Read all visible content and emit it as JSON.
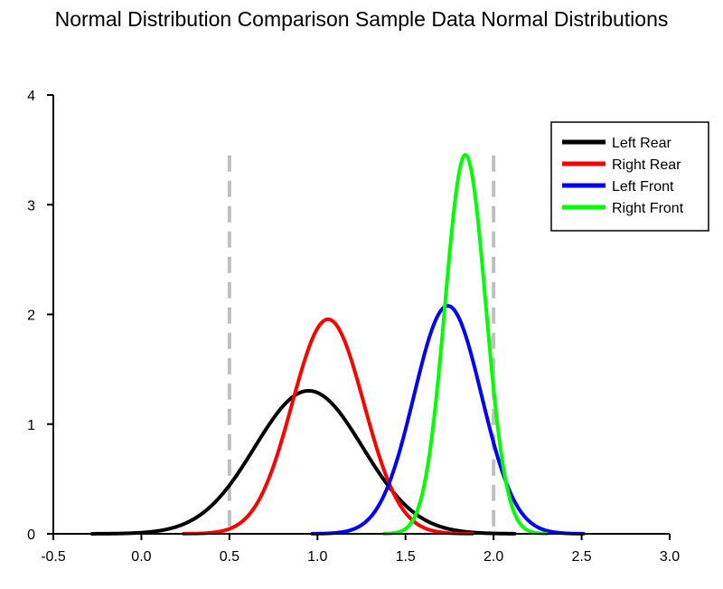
{
  "chart_data": {
    "type": "line",
    "title": "Normal Distribution Comparison Sample Data Normal Distributions",
    "xlabel": "",
    "ylabel": "",
    "xlim": [
      -0.5,
      3.0
    ],
    "ylim": [
      0,
      4
    ],
    "x_ticks": [
      -0.5,
      0.0,
      0.5,
      1.0,
      1.5,
      2.0,
      2.5,
      3.0
    ],
    "x_tick_labels": [
      "-0.5",
      "0.0",
      "0.5",
      "1.0",
      "1.5",
      "2.0",
      "2.5",
      "3.0"
    ],
    "y_ticks": [
      0,
      1,
      2,
      3,
      4
    ],
    "y_tick_labels": [
      "0",
      "1",
      "2",
      "3",
      "4"
    ],
    "grid": false,
    "legend_position": "top-right",
    "series": [
      {
        "name": "Left Rear",
        "color": "#000000",
        "distribution": {
          "mean": 0.95,
          "sd": 0.306
        },
        "x_range": [
          -0.28,
          2.12
        ]
      },
      {
        "name": "Right Rear",
        "color": "#ff0000",
        "distribution": {
          "mean": 1.06,
          "sd": 0.204
        },
        "x_range": [
          0.24,
          1.88
        ]
      },
      {
        "name": "Left Front",
        "color": "#0000ff",
        "distribution": {
          "mean": 1.74,
          "sd": 0.192
        },
        "x_range": [
          0.97,
          2.51
        ]
      },
      {
        "name": "Right Front",
        "color": "#00ff00",
        "distribution": {
          "mean": 1.84,
          "sd": 0.1155
        },
        "x_range": [
          1.38,
          2.3
        ]
      }
    ],
    "reference_lines": [
      {
        "x": 0.5,
        "style": "dashed",
        "color": "#c0c0c0",
        "y_top": 3.45
      },
      {
        "x": 2.0,
        "style": "dashed",
        "color": "#c0c0c0",
        "y_top": 3.45
      }
    ]
  }
}
